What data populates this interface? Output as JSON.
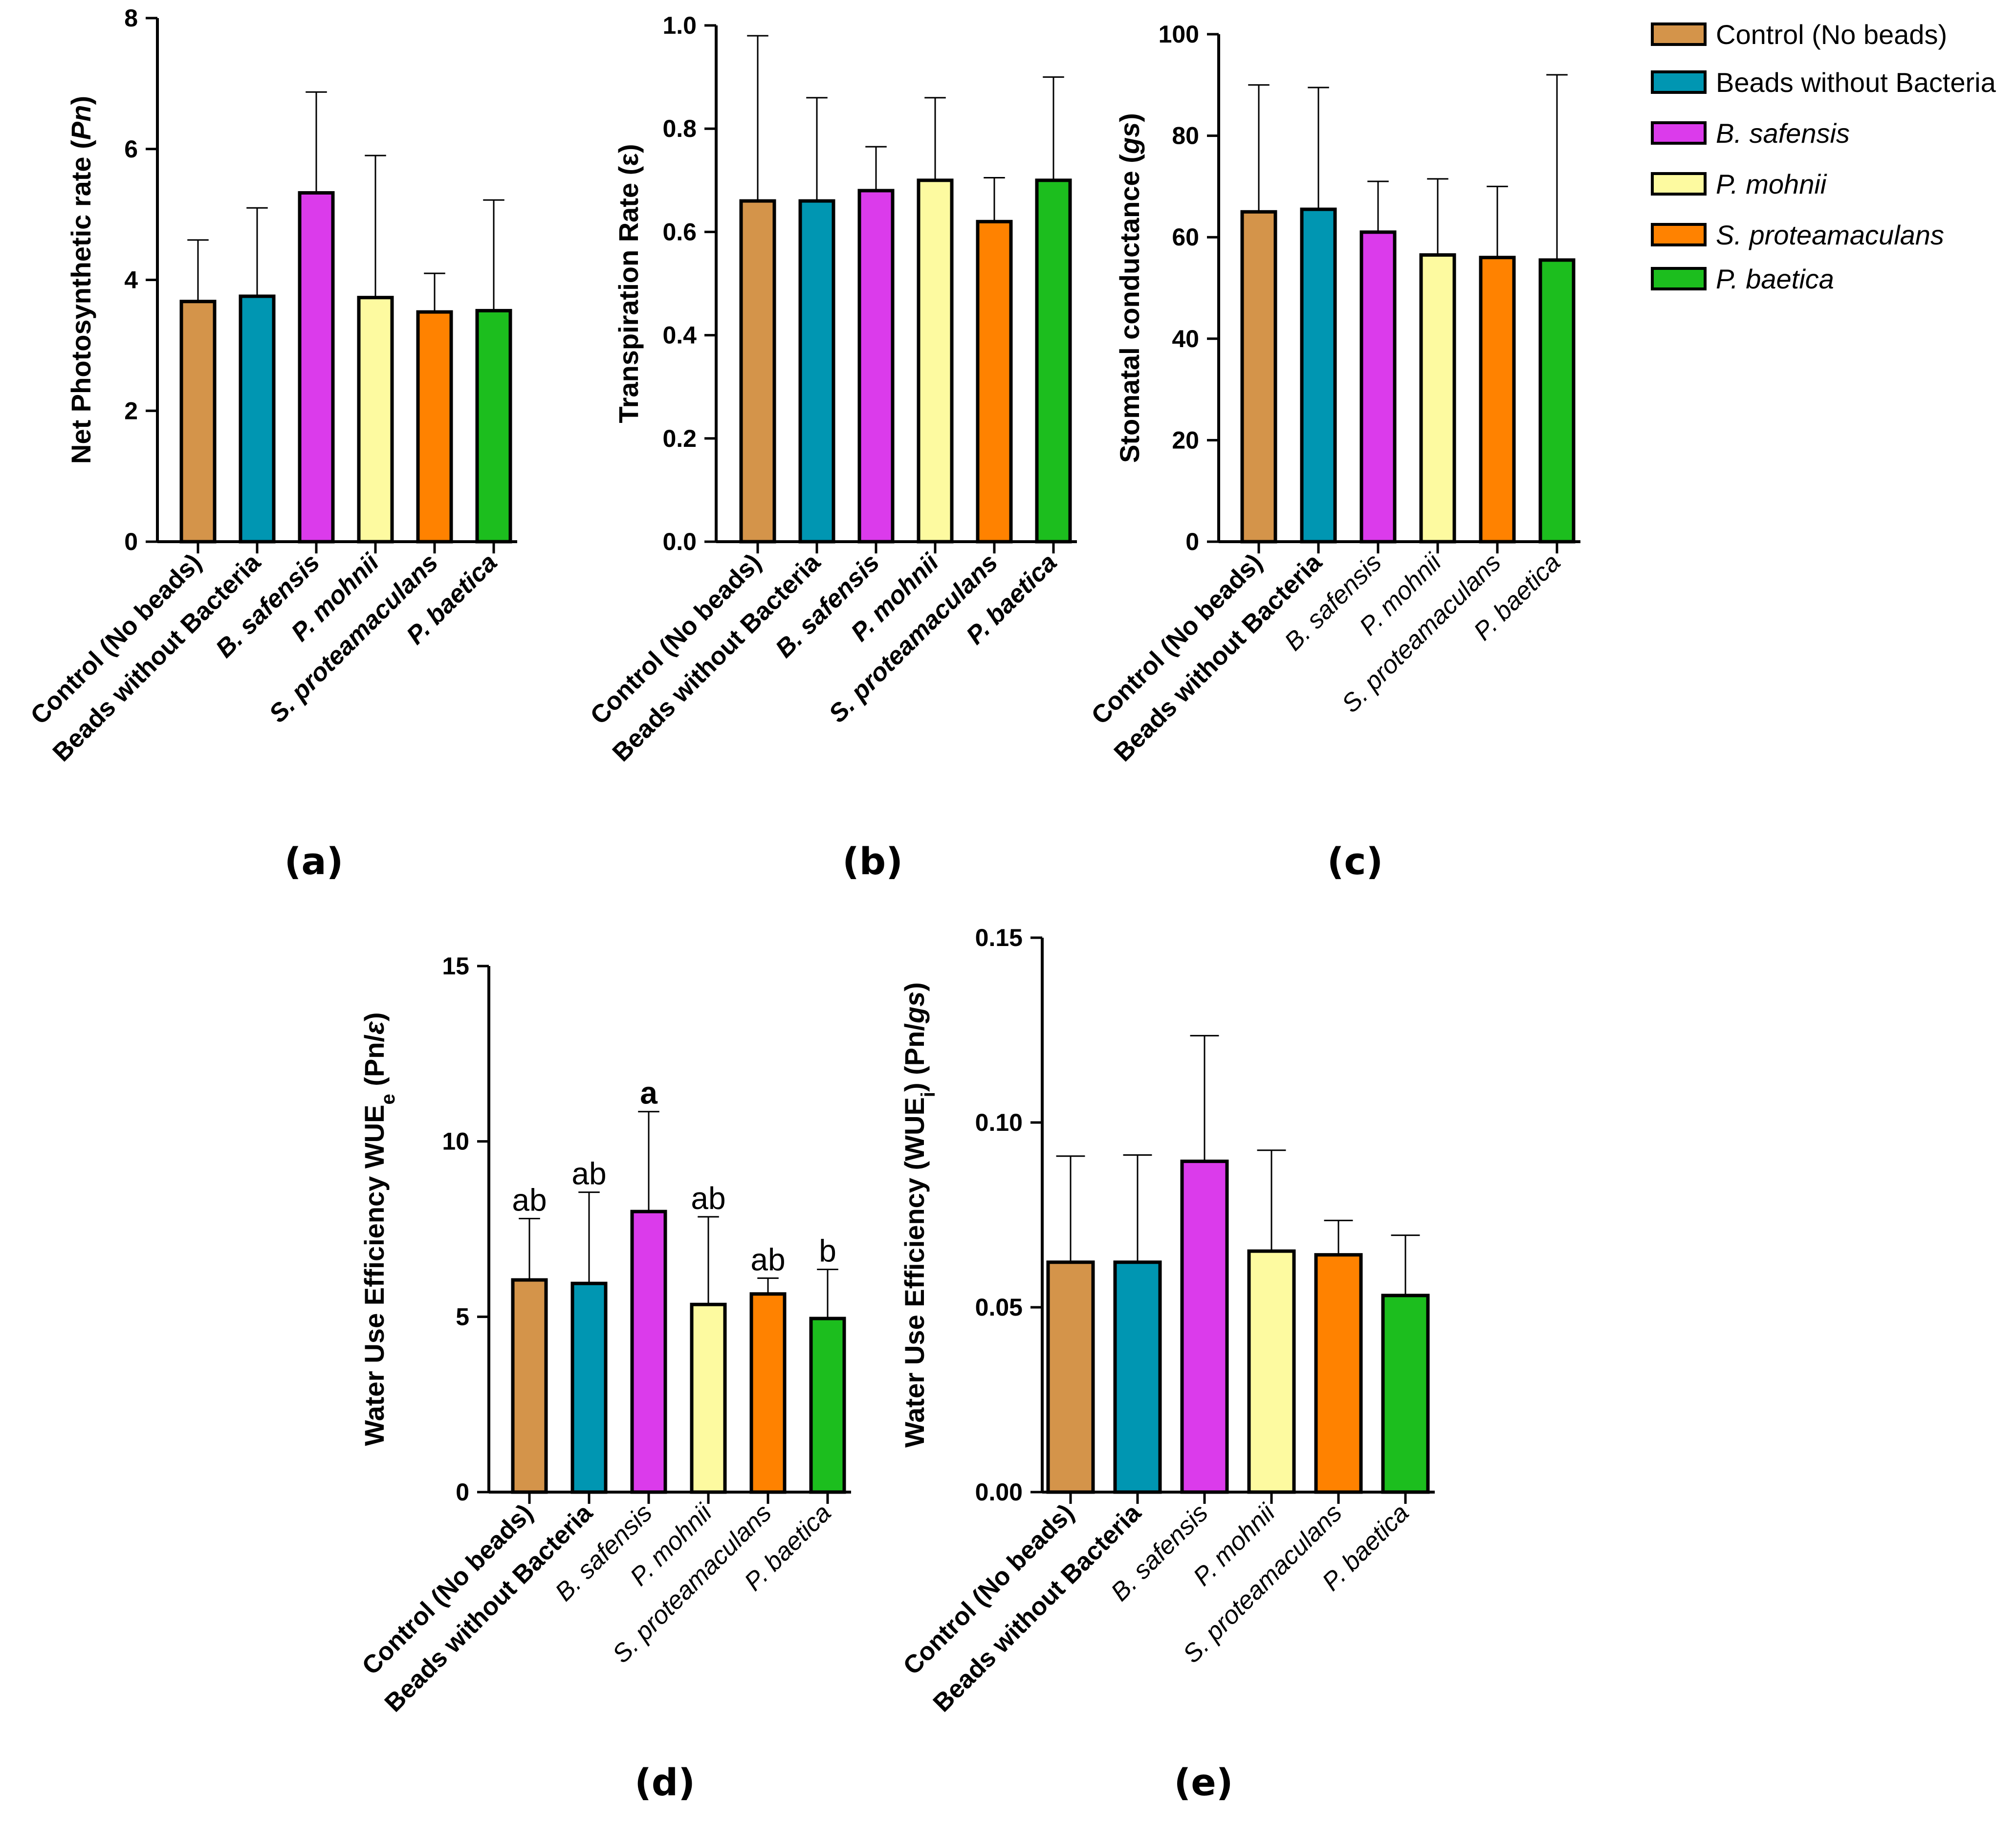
{
  "colors": {
    "control": "#D4944A",
    "beads": "#0096B2",
    "bsafensis": "#DB3BEB",
    "pmohnii": "#FDFAA0",
    "sproteamaculans": "#FF8200",
    "pbaetica": "#1CBE1E"
  },
  "legend": [
    {
      "label": "Control (No beads)",
      "italic": false,
      "color_key": "control"
    },
    {
      "label": "Beads without Bacteria",
      "italic": false,
      "color_key": "beads"
    },
    {
      "label": "B. safensis",
      "italic": true,
      "color_key": "bsafensis"
    },
    {
      "label": "P. mohnii",
      "italic": true,
      "color_key": "pmohnii"
    },
    {
      "label": "S. proteamaculans",
      "italic": true,
      "color_key": "sproteamaculans"
    },
    {
      "label": "P. baetica",
      "italic": true,
      "color_key": "pbaetica"
    }
  ],
  "chart_data": [
    {
      "id": "a",
      "panel_label": "(a)",
      "type": "bar",
      "ylabel_parts": [
        {
          "t": "Net Photosynthetic rate (",
          "i": false
        },
        {
          "t": "Pn",
          "i": true
        },
        {
          "t": ")",
          "i": false
        }
      ],
      "ylim": [
        0,
        8
      ],
      "yticks": [
        "0",
        "2",
        "4",
        "6",
        "8"
      ],
      "categories": [
        "Control (No beads)",
        "Beads without Bacteria",
        "B. safensis",
        "P. mohnii",
        "S. proteamaculans",
        "P. baetica"
      ],
      "category_styles": [
        {
          "bold": true,
          "italic": false
        },
        {
          "bold": true,
          "italic": false
        },
        {
          "bold": true,
          "italic": true
        },
        {
          "bold": true,
          "italic": true
        },
        {
          "bold": true,
          "italic": true
        },
        {
          "bold": true,
          "italic": true
        }
      ],
      "values": [
        3.67,
        3.75,
        5.33,
        3.73,
        3.51,
        3.53
      ],
      "errors": [
        0.94,
        1.35,
        1.54,
        2.17,
        0.59,
        1.69
      ],
      "letters": []
    },
    {
      "id": "b",
      "panel_label": "(b)",
      "type": "bar",
      "ylabel_parts": [
        {
          "t": "Transpiration Rate (ε)",
          "i": false
        }
      ],
      "ylim": [
        0,
        1.0
      ],
      "yticks": [
        "0.0",
        "0.2",
        "0.4",
        "0.6",
        "0.8",
        "1.0"
      ],
      "categories": [
        "Control (No beads)",
        "Beads without Bacteria",
        "B. safensis",
        "P. mohnii",
        "S. proteamaculans",
        "P. baetica"
      ],
      "category_styles": [
        {
          "bold": true,
          "italic": false
        },
        {
          "bold": true,
          "italic": false
        },
        {
          "bold": true,
          "italic": true
        },
        {
          "bold": true,
          "italic": true
        },
        {
          "bold": true,
          "italic": true
        },
        {
          "bold": true,
          "italic": true
        }
      ],
      "values": [
        0.66,
        0.66,
        0.68,
        0.7,
        0.62,
        0.7
      ],
      "errors": [
        0.32,
        0.2,
        0.085,
        0.16,
        0.085,
        0.2
      ],
      "letters": []
    },
    {
      "id": "c",
      "panel_label": "(c)",
      "type": "bar",
      "ylabel_parts": [
        {
          "t": "Stomatal conductance (",
          "i": false
        },
        {
          "t": "gs",
          "i": true
        },
        {
          "t": ")",
          "i": false
        }
      ],
      "ylim": [
        0,
        100
      ],
      "yticks": [
        "0",
        "20",
        "40",
        "60",
        "80",
        "100"
      ],
      "categories": [
        "Control (No beads)",
        "Beads without Bacteria",
        "B. safensis",
        "P. mohnii",
        "S. proteamaculans",
        "P. baetica"
      ],
      "category_styles": [
        {
          "bold": true,
          "italic": false
        },
        {
          "bold": true,
          "italic": false
        },
        {
          "bold": false,
          "italic": true
        },
        {
          "bold": false,
          "italic": true
        },
        {
          "bold": false,
          "italic": true
        },
        {
          "bold": false,
          "italic": true
        }
      ],
      "values": [
        65,
        65.5,
        61,
        56.5,
        56,
        55.5
      ],
      "errors": [
        25,
        24,
        10,
        15,
        14,
        36.5
      ],
      "letters": []
    },
    {
      "id": "d",
      "panel_label": "(d)",
      "type": "bar",
      "ylabel_parts": [
        {
          "t": "Water Use Efficiency WUE",
          "i": false
        },
        {
          "t": "e",
          "i": false,
          "sub": true
        },
        {
          "t": "  (Pn/",
          "i": false
        },
        {
          "t": "ε",
          "i": true
        },
        {
          "t": ")",
          "i": false
        }
      ],
      "ylim": [
        0,
        15
      ],
      "yticks": [
        "0",
        "5",
        "10",
        "15"
      ],
      "categories": [
        "Control (No beads)",
        "Beads without Bacteria",
        "B. safensis",
        "P. mohnii",
        "S. proteamaculans",
        "P. baetica"
      ],
      "category_styles": [
        {
          "bold": true,
          "italic": false
        },
        {
          "bold": true,
          "italic": false
        },
        {
          "bold": false,
          "italic": true
        },
        {
          "bold": false,
          "italic": true
        },
        {
          "bold": false,
          "italic": true
        },
        {
          "bold": false,
          "italic": true
        }
      ],
      "values": [
        6.05,
        5.95,
        8.0,
        5.35,
        5.65,
        4.95
      ],
      "errors": [
        1.75,
        2.6,
        2.85,
        2.5,
        0.45,
        1.4
      ],
      "letters": [
        {
          "t": "ab",
          "bold": false
        },
        {
          "t": "ab",
          "bold": false
        },
        {
          "t": "a",
          "bold": true
        },
        {
          "t": "ab",
          "bold": false
        },
        {
          "t": "ab",
          "bold": false
        },
        {
          "t": "b",
          "bold": false
        }
      ]
    },
    {
      "id": "e",
      "panel_label": "(e)",
      "type": "bar",
      "ylabel_parts": [
        {
          "t": "Water Use Efficiency (WUE",
          "i": false
        },
        {
          "t": "i",
          "i": false,
          "sub": true
        },
        {
          "t": ") (Pn/",
          "i": false
        },
        {
          "t": "gs",
          "i": true
        },
        {
          "t": ")",
          "i": false
        }
      ],
      "ylim": [
        0,
        0.15
      ],
      "yticks": [
        "0.00",
        "0.05",
        "0.10",
        "0.15"
      ],
      "categories": [
        "Control (No beads)",
        "Beads without Bacteria",
        "B. safensis",
        "P. mohnii",
        "S. proteamaculans",
        "P. baetica"
      ],
      "category_styles": [
        {
          "bold": true,
          "italic": false
        },
        {
          "bold": true,
          "italic": false
        },
        {
          "bold": false,
          "italic": true
        },
        {
          "bold": false,
          "italic": true
        },
        {
          "bold": false,
          "italic": true
        },
        {
          "bold": false,
          "italic": true
        }
      ],
      "values": [
        0.0622,
        0.0622,
        0.0895,
        0.0652,
        0.0642,
        0.0532
      ],
      "errors": [
        0.0287,
        0.029,
        0.034,
        0.0273,
        0.0093,
        0.0163
      ],
      "letters": []
    }
  ]
}
